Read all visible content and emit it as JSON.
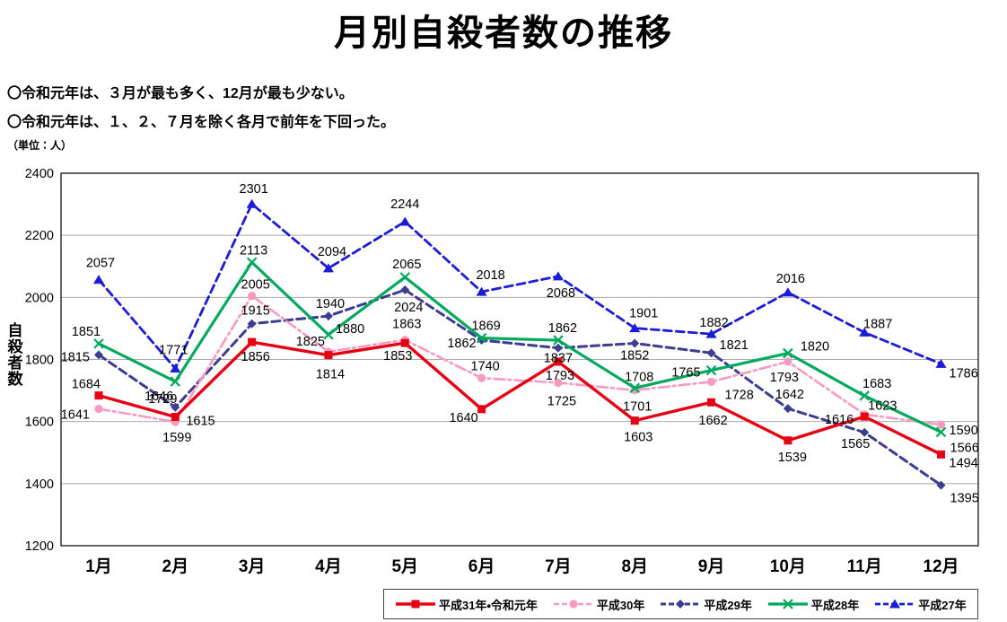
{
  "title": "月別自殺者数の推移",
  "notes": [
    "〇令和元年は、３月が最も多く、12月が最も少ない。",
    "〇令和元年は、１、２、７月を除く各月で前年を下回った。"
  ],
  "unit_note": "（単位：人）",
  "chart_data": {
    "type": "line",
    "title": "月別自殺者数の推移",
    "xlabel": "",
    "ylabel": "自殺者数",
    "ylim": [
      1200,
      2400
    ],
    "yticks": [
      1200,
      1400,
      1600,
      1800,
      2000,
      2200,
      2400
    ],
    "grid": true,
    "legend_position": "bottom-right",
    "data_labels": true,
    "categories": [
      "1月",
      "2月",
      "3月",
      "4月",
      "5月",
      "6月",
      "7月",
      "8月",
      "9月",
      "10月",
      "11月",
      "12月"
    ],
    "series": [
      {
        "name": "平成31年・令和元年",
        "color": "#e60013",
        "style": "solid",
        "marker": "square",
        "line_width": 3.4,
        "values": [
          1684,
          1615,
          1856,
          1814,
          1853,
          1640,
          1793,
          1603,
          1662,
          1539,
          1616,
          1494
        ]
      },
      {
        "name": "平成30年",
        "color": "#f79ac0",
        "style": "dashdot",
        "marker": "circle",
        "line_width": 2.6,
        "values": [
          1641,
          1599,
          2005,
          1825,
          1863,
          1740,
          1725,
          1701,
          1728,
          1793,
          1623,
          1590
        ]
      },
      {
        "name": "平成29年",
        "color": "#3c3c90",
        "style": "dashed",
        "marker": "diamond",
        "line_width": 3.0,
        "values": [
          1815,
          1646,
          1915,
          1940,
          2024,
          1862,
          1837,
          1852,
          1821,
          1642,
          1565,
          1395
        ]
      },
      {
        "name": "平成28年",
        "color": "#00a95e",
        "style": "solid",
        "marker": "x",
        "line_width": 3.2,
        "values": [
          1851,
          1729,
          2113,
          1880,
          2065,
          1869,
          1862,
          1708,
          1765,
          1820,
          1683,
          1566
        ]
      },
      {
        "name": "平成27年",
        "color": "#1c1cd8",
        "style": "dashed",
        "marker": "triangle",
        "line_width": 2.8,
        "values": [
          2057,
          1771,
          2301,
          2094,
          2244,
          2018,
          2068,
          1901,
          1882,
          2016,
          1887,
          1786
        ]
      }
    ]
  }
}
